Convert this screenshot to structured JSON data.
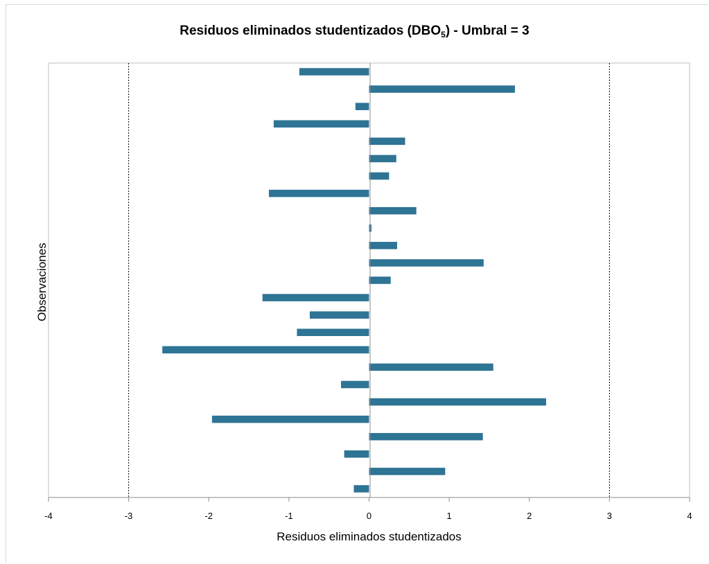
{
  "chart_data": {
    "type": "bar",
    "orientation": "horizontal",
    "title": "Residuos eliminados studentizados (DBO",
    "title_subscript": "5",
    "title_suffix": ") - Umbral = 3",
    "xlabel": "Residuos eliminados studentizados",
    "ylabel": "Observaciones",
    "xlim": [
      -4,
      4
    ],
    "xticks": [
      "-4",
      "-3",
      "-2",
      "-1",
      "0",
      "1",
      "2",
      "3",
      "4"
    ],
    "threshold": 3,
    "threshold_lines": [
      -3,
      3
    ],
    "bar_color": "#2e7494",
    "grid": false,
    "values": [
      -0.87,
      1.82,
      -0.17,
      -1.19,
      0.45,
      0.34,
      0.25,
      -1.25,
      0.59,
      0.03,
      0.35,
      1.43,
      0.27,
      -1.33,
      -0.74,
      -0.9,
      -2.58,
      1.55,
      -0.35,
      2.21,
      -1.96,
      1.42,
      -0.31,
      0.95,
      -0.19
    ]
  }
}
